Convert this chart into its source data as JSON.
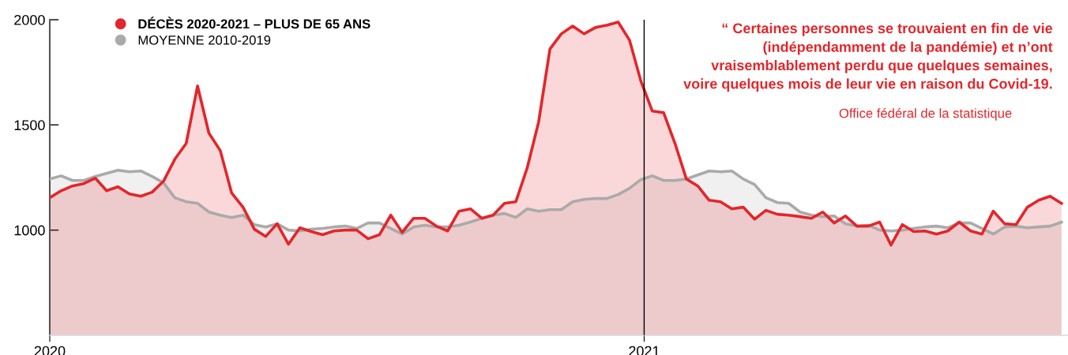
{
  "chart_data": {
    "type": "area",
    "x": [
      "2020-01-01",
      "2020-01-08",
      "2020-01-15",
      "2020-01-22",
      "2020-01-29",
      "2020-02-05",
      "2020-02-12",
      "2020-02-19",
      "2020-02-26",
      "2020-03-04",
      "2020-03-11",
      "2020-03-18",
      "2020-03-25",
      "2020-04-01",
      "2020-04-08",
      "2020-04-15",
      "2020-04-22",
      "2020-04-29",
      "2020-05-06",
      "2020-05-13",
      "2020-05-20",
      "2020-05-27",
      "2020-06-03",
      "2020-06-10",
      "2020-06-17",
      "2020-06-24",
      "2020-07-01",
      "2020-07-08",
      "2020-07-15",
      "2020-07-22",
      "2020-07-29",
      "2020-08-05",
      "2020-08-12",
      "2020-08-19",
      "2020-08-26",
      "2020-09-02",
      "2020-09-09",
      "2020-09-16",
      "2020-09-23",
      "2020-09-30",
      "2020-10-07",
      "2020-10-14",
      "2020-10-21",
      "2020-10-28",
      "2020-11-04",
      "2020-11-11",
      "2020-11-18",
      "2020-11-25",
      "2020-12-02",
      "2020-12-09",
      "2020-12-16",
      "2020-12-23",
      "2020-12-30",
      "2021-01-06",
      "2021-01-13",
      "2021-01-20",
      "2021-01-27",
      "2021-02-03",
      "2021-02-10",
      "2021-02-17",
      "2021-02-24",
      "2021-03-03",
      "2021-03-10",
      "2021-03-17",
      "2021-03-24",
      "2021-03-31",
      "2021-04-07",
      "2021-04-14",
      "2021-04-21",
      "2021-04-28",
      "2021-05-05",
      "2021-05-12",
      "2021-05-19",
      "2021-05-26",
      "2021-06-02",
      "2021-06-09",
      "2021-06-16",
      "2021-06-23",
      "2021-06-30",
      "2021-07-07",
      "2021-07-14",
      "2021-07-21",
      "2021-07-28",
      "2021-08-04",
      "2021-08-11",
      "2021-08-18",
      "2021-08-25",
      "2021-09-01",
      "2021-09-08",
      "2021-09-15"
    ],
    "series": [
      {
        "name": "MOYENNE 2010-2019",
        "color": "#aaaaaa",
        "values": [
          1243,
          1258,
          1236,
          1236,
          1255,
          1270,
          1285,
          1277,
          1281,
          1255,
          1225,
          1154,
          1135,
          1127,
          1086,
          1071,
          1060,
          1071,
          1026,
          1015,
          1030,
          1000,
          996,
          1004,
          1008,
          1015,
          1019,
          1008,
          1034,
          1034,
          1008,
          981,
          1015,
          1023,
          1015,
          1015,
          1023,
          1038,
          1056,
          1071,
          1079,
          1060,
          1101,
          1090,
          1097,
          1097,
          1135,
          1146,
          1150,
          1150,
          1169,
          1199,
          1240,
          1258,
          1236,
          1236,
          1243,
          1262,
          1281,
          1277,
          1281,
          1243,
          1217,
          1154,
          1131,
          1127,
          1086,
          1071,
          1064,
          1067,
          1030,
          1019,
          1023,
          1000,
          996,
          1000,
          1008,
          1015,
          1019,
          1011,
          1034,
          1034,
          1008,
          981,
          1015,
          1019,
          1011,
          1015,
          1019,
          1038
        ]
      },
      {
        "name": "DÉCÈS 2020-2021 – PLUS DE 65 ANS",
        "color": "#e3262b",
        "values": [
          1154,
          1187,
          1210,
          1221,
          1247,
          1187,
          1206,
          1172,
          1161,
          1180,
          1232,
          1337,
          1412,
          1685,
          1461,
          1378,
          1176,
          1109,
          1004,
          970,
          1030,
          933,
          1011,
          993,
          978,
          996,
          1000,
          1000,
          959,
          978,
          1071,
          989,
          1056,
          1056,
          1019,
          996,
          1090,
          1101,
          1056,
          1071,
          1127,
          1135,
          1296,
          1513,
          1861,
          1933,
          1970,
          1933,
          1963,
          1974,
          1989,
          1903,
          1708,
          1566,
          1558,
          1412,
          1243,
          1210,
          1142,
          1135,
          1101,
          1109,
          1052,
          1094,
          1075,
          1071,
          1064,
          1056,
          1086,
          1034,
          1067,
          1019,
          1019,
          1038,
          929,
          1026,
          993,
          996,
          981,
          996,
          1038,
          996,
          981,
          1090,
          1030,
          1026,
          1109,
          1142,
          1161,
          1127
        ]
      }
    ],
    "xticks": [
      {
        "value": "2020-01-01",
        "label": "2020"
      },
      {
        "value": "2021-01-01",
        "label": "2021"
      }
    ],
    "xlim": [
      "2020-01-01",
      "2021-09-19"
    ],
    "ylim": [
      500,
      2000
    ],
    "yticks": [
      1000,
      1500,
      2000
    ],
    "ref_lines": [
      {
        "axis": "x",
        "value": "2021-01-01",
        "color": "#000000"
      }
    ],
    "annotations": [
      "“ Certaines personnes se trouvaient en fin de vie\n(indépendamment de la pandémie) et n’ont\nvraisemblablement perdu que quelques semaines,\nvoire quelques mois de leur vie en raison du Covid-19.",
      "Office fédéral de la statistique"
    ],
    "legend": "top left",
    "marker": "none",
    "line_style": "solid",
    "grid": false
  }
}
